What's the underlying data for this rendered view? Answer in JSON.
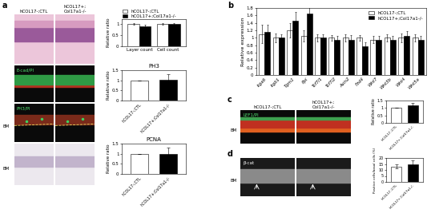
{
  "panel_letters": [
    "a",
    "b",
    "c",
    "d"
  ],
  "images": {
    "a": {
      "column_headers": [
        "hCOL17-;CTL",
        "hCOL17+;\nCol17a1-/-"
      ],
      "rows": [
        {},
        {
          "overlay": "E-cad/PI"
        },
        {
          "overlay": "PH3/PI",
          "side_label": "BM"
        },
        {
          "side_label": "BM"
        }
      ]
    },
    "c": {
      "column_headers": [
        "hCOL17-;CTL",
        "hCOL17+;\nCol17a1-/-"
      ],
      "rows": [
        {
          "overlay": "LEF1/PI",
          "side_label": "BM"
        }
      ]
    },
    "d": {
      "rows": [
        {
          "overlay": "β-cat",
          "side_label": "BM"
        }
      ]
    }
  },
  "chart_data": [
    {
      "type": "bar",
      "ylabel": "Relative ratio",
      "categories": [
        "Layer count",
        "Cell count"
      ],
      "series": [
        {
          "name": "hCOL17-;CTL",
          "color": "#ffffff",
          "values": [
            1.0,
            1.0
          ],
          "errors": [
            0.03,
            0.03
          ]
        },
        {
          "name": "hCOL17+;Col17a1-/-",
          "color": "#000000",
          "values": [
            0.9,
            0.98
          ],
          "errors": [
            0.04,
            0.03
          ]
        }
      ],
      "ylim": [
        0,
        1.2
      ],
      "yticks": [
        0,
        0.5,
        1
      ],
      "legend": "lower left"
    },
    {
      "type": "bar",
      "title": "PH3",
      "ylabel": "Relative ratio",
      "categories": [
        "hCOL17-;CTL",
        "hCOL17+;Col17a1-/-"
      ],
      "values": [
        1.0,
        1.02
      ],
      "errors": [
        0,
        0.28
      ],
      "colors": [
        "#ffffff",
        "#000000"
      ],
      "ylim": [
        0,
        1.5
      ],
      "yticks": [
        0,
        0.5,
        1,
        1.5
      ]
    },
    {
      "type": "bar",
      "title": "PCNA",
      "ylabel": "Relative ratio",
      "categories": [
        "hCOL17-;CTL",
        "hCOL17+;Col17a1-/-"
      ],
      "values": [
        1.0,
        0.97
      ],
      "errors": [
        0,
        0.35
      ],
      "colors": [
        "#ffffff",
        "#000000"
      ],
      "ylim": [
        0,
        1.5
      ],
      "yticks": [
        0,
        0.5,
        1,
        1.5
      ]
    },
    {
      "type": "bar",
      "ylabel": "Relative expression",
      "categories": [
        "Itga6",
        "Itgb1",
        "Tgm1",
        "Ppl",
        "Tcf7l1",
        "Tcf7l2",
        "Axin2",
        "Fzd4",
        "Wnt7",
        "Wnt3b",
        "Wnt4",
        "Wnt5a"
      ],
      "series": [
        {
          "name": "hCOL17-;CTL",
          "color": "#ffffff",
          "values": [
            1.1,
            1.0,
            1.2,
            1.05,
            1.0,
            1.0,
            1.0,
            1.0,
            0.95,
            1.0,
            1.0,
            1.0
          ],
          "errors": [
            0.25,
            0.12,
            0.2,
            0.15,
            0.1,
            0.08,
            0.1,
            0.08,
            0.1,
            0.1,
            0.12,
            0.1
          ]
        },
        {
          "name": "hCOL17+;Col17a1-/-",
          "color": "#000000",
          "values": [
            1.15,
            1.0,
            1.45,
            1.65,
            1.0,
            0.95,
            0.95,
            0.78,
            0.95,
            0.95,
            1.05,
            0.95
          ],
          "errors": [
            0.2,
            0.1,
            0.25,
            0.2,
            0.1,
            0.1,
            0.12,
            0.1,
            0.1,
            0.1,
            0.12,
            0.1
          ]
        }
      ],
      "ylim": [
        0,
        1.8
      ],
      "yticks": [
        0,
        0.2,
        0.4,
        0.6,
        0.8,
        1,
        1.2,
        1.4,
        1.6,
        1.8
      ],
      "legend": "upper right"
    },
    {
      "type": "bar",
      "ylabel": "Relative ratio",
      "categories": [
        "hCOL17-;CTL",
        "hCOL17+;Col17a1-/-"
      ],
      "values": [
        1.0,
        1.2
      ],
      "errors": [
        0,
        0.15
      ],
      "colors": [
        "#ffffff",
        "#000000"
      ],
      "ylim": [
        0,
        1.5
      ],
      "yticks": [
        0,
        0.5,
        1,
        1.5
      ]
    },
    {
      "type": "bar",
      "ylabel": "Positive cells/basal cells (%)",
      "categories": [
        "hCOL17-;CTL",
        "hCOL17+;Col17a1-/-"
      ],
      "values": [
        13,
        15
      ],
      "errors": [
        1.5,
        3
      ],
      "colors": [
        "#ffffff",
        "#000000"
      ],
      "ylim": [
        0,
        20
      ],
      "yticks": [
        0,
        5,
        10,
        15,
        20
      ]
    }
  ]
}
